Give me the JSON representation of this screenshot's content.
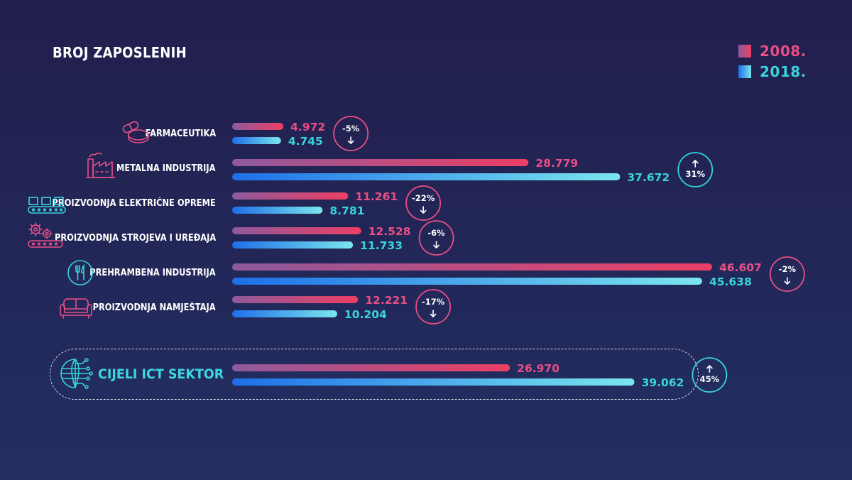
{
  "title": "BROJ ZAPOSLENIH",
  "legend": [
    {
      "label": "2008.",
      "color": "#e94e86"
    },
    {
      "label": "2018.",
      "color": "#38d4dc"
    }
  ],
  "colors": {
    "pink_start": "#8e5a9c",
    "pink_end": "#ec3f64",
    "blue_start": "#1e6fe8",
    "blue_end": "#7be6ee",
    "pink_text": "#e94e86",
    "blue_text": "#38d4dc",
    "track": "#8c6fa8"
  },
  "chart_data": {
    "type": "bar",
    "orientation": "horizontal",
    "title": "BROJ ZAPOSLENIH",
    "series_names": [
      "2008.",
      "2018."
    ],
    "xlim": [
      0,
      46607
    ],
    "categories": [
      {
        "name": "FARMACEUTIKA",
        "icon": "pill-icon",
        "v2008": 4972,
        "v2018": 4745,
        "label2008": "4.972",
        "label2018": "4.745",
        "change": "-5%",
        "direction": "down"
      },
      {
        "name": "METALNA INDUSTRIJA",
        "icon": "factory-icon",
        "v2008": 28779,
        "v2018": 37672,
        "label2008": "28.779",
        "label2018": "37.672",
        "change": "31%",
        "direction": "up"
      },
      {
        "name": "PROIZVODNJA ELEKTRIČNE OPREME",
        "icon": "conveyor-icon",
        "v2008": 11261,
        "v2018": 8781,
        "label2008": "11.261",
        "label2018": "8.781",
        "change": "-22%",
        "direction": "down"
      },
      {
        "name": "PROIZVODNJA STROJEVA I UREĐAJA",
        "icon": "gears-icon",
        "v2008": 12528,
        "v2018": 11733,
        "label2008": "12.528",
        "label2018": "11.733",
        "change": "-6%",
        "direction": "down"
      },
      {
        "name": "PREHRAMBENA INDUSTRIJA",
        "icon": "cutlery-icon",
        "v2008": 46607,
        "v2018": 45638,
        "label2008": "46.607",
        "label2018": "45.638",
        "change": "-2%",
        "direction": "down"
      },
      {
        "name": "PROIZVODNJA NAMJEŠTAJA",
        "icon": "sofa-icon",
        "v2008": 12221,
        "v2018": 10204,
        "label2008": "12.221",
        "label2018": "10.204",
        "change": "-17%",
        "direction": "down"
      }
    ],
    "total": {
      "name": "CIJELI ICT SEKTOR",
      "icon": "globe-network-icon",
      "v2008": 26970,
      "v2018": 39062,
      "label2008": "26.970",
      "label2018": "39.062",
      "change": "45%",
      "direction": "up"
    }
  }
}
